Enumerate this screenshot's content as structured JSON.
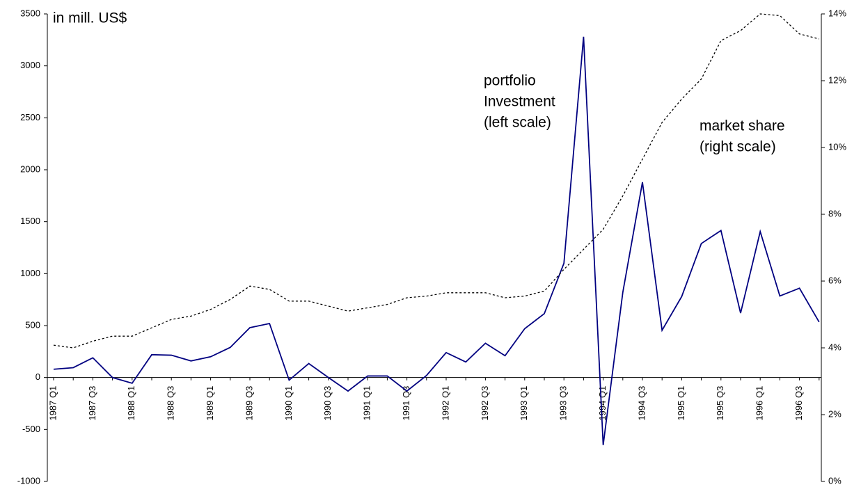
{
  "chart_data": {
    "type": "line",
    "categories": [
      "1987 Q1",
      null,
      "1987 Q3",
      null,
      "1988 Q1",
      null,
      "1988 Q3",
      null,
      "1989 Q1",
      null,
      "1989 Q3",
      null,
      "1990 Q1",
      null,
      "1990 Q3",
      null,
      "1991 Q1",
      null,
      "1991 Q3",
      null,
      "1992 Q1",
      null,
      "1992 Q3",
      null,
      "1993 Q1",
      null,
      "1993 Q3",
      null,
      "1994 Q1",
      null,
      "1994 Q3",
      null,
      "1995 Q1",
      null,
      "1995 Q3",
      null,
      "1996 Q1",
      null,
      "1996 Q3",
      null
    ],
    "series": [
      {
        "color": "#000080",
        "dash": "solid",
        "axis": "y",
        "values": [
          80,
          95,
          190,
          0,
          -55,
          220,
          215,
          160,
          200,
          290,
          480,
          520,
          -25,
          135,
          0,
          -130,
          15,
          15,
          -130,
          20,
          240,
          150,
          330,
          210,
          470,
          615,
          1100,
          3280,
          -650,
          820,
          1880,
          455,
          780,
          1290,
          1415,
          620,
          1405,
          785,
          860,
          535
        ]
      },
      {
        "color": "#000000",
        "dash": "dotted",
        "axis": "y2",
        "values": [
          4.08,
          4.0,
          4.2,
          4.35,
          4.35,
          4.6,
          4.85,
          4.95,
          5.15,
          5.45,
          5.85,
          5.75,
          5.4,
          5.4,
          5.25,
          5.1,
          5.2,
          5.3,
          5.5,
          5.55,
          5.65,
          5.65,
          5.65,
          5.5,
          5.55,
          5.7,
          6.35,
          6.95,
          7.55,
          8.55,
          9.65,
          10.75,
          11.45,
          12.05,
          13.2,
          13.5,
          14.0,
          13.95,
          13.4,
          13.25
        ]
      }
    ],
    "ylim": [
      -1000,
      3500
    ],
    "yticks": [
      -1000,
      -500,
      0,
      500,
      1000,
      1500,
      2000,
      2500,
      3000,
      3500
    ],
    "y2lim": [
      0,
      14
    ],
    "y2ticks": [
      {
        "value": 0,
        "label": "0%"
      },
      {
        "value": 2,
        "label": "2%"
      },
      {
        "value": 4,
        "label": "4%"
      },
      {
        "value": 6,
        "label": "6%"
      },
      {
        "value": 8,
        "label": "8%"
      },
      {
        "value": 10,
        "label": "10%"
      },
      {
        "value": 12,
        "label": "12%"
      },
      {
        "value": 14,
        "label": "14%"
      }
    ],
    "annotations": [
      {
        "lines": [
          "in mill. US$"
        ]
      },
      {
        "lines": [
          "portfolio",
          "Investment",
          "(left scale)"
        ]
      },
      {
        "lines": [
          "market share",
          "(right scale)"
        ]
      }
    ]
  }
}
